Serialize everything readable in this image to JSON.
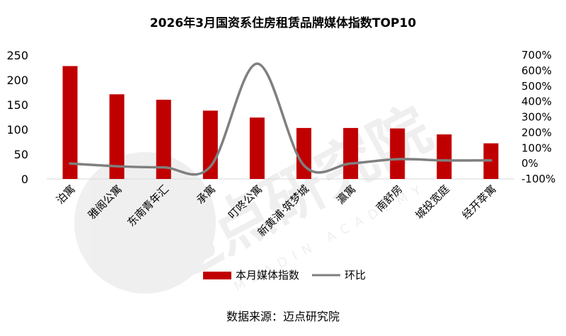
{
  "chart_data": {
    "type": "bar",
    "title": "2026年3月国资系住房租赁品牌媒体指数TOP10",
    "categories": [
      "泊寓",
      "雅阁公寓",
      "东南青年汇",
      "承寓",
      "叮咚公寓",
      "新黄浦·筑梦城",
      "瀛寓",
      "南舒房",
      "城投宽庭",
      "经开萃寓"
    ],
    "series": [
      {
        "name": "本月媒体指数",
        "axis": "left",
        "chart": "bar",
        "color": "#c00000",
        "values": [
          228,
          171,
          160,
          138,
          124,
          103,
          103,
          102,
          90,
          72
        ]
      },
      {
        "name": "环比",
        "axis": "right",
        "chart": "line",
        "color": "#7f7f7f",
        "values": [
          0.0,
          -0.18,
          -0.25,
          -0.2,
          6.45,
          -0.12,
          0.0,
          0.28,
          0.2,
          0.2
        ]
      }
    ],
    "ylim_left": [
      0,
      250
    ],
    "yticks_left": [
      0,
      50,
      100,
      150,
      200,
      250
    ],
    "ylim_right": [
      -1,
      7
    ],
    "yticks_right": [
      -1,
      0,
      1,
      2,
      3,
      4,
      5,
      6,
      7
    ],
    "yticks_right_labels": [
      "-100%",
      "0%",
      "100%",
      "200%",
      "300%",
      "400%",
      "500%",
      "600%",
      "700%"
    ],
    "legend_position": "bottom",
    "grid": false
  },
  "source": "数据来源：迈点研究院",
  "watermark": {
    "text": "迈点研究院",
    "subtext": "MEADIN ACADEMY"
  }
}
